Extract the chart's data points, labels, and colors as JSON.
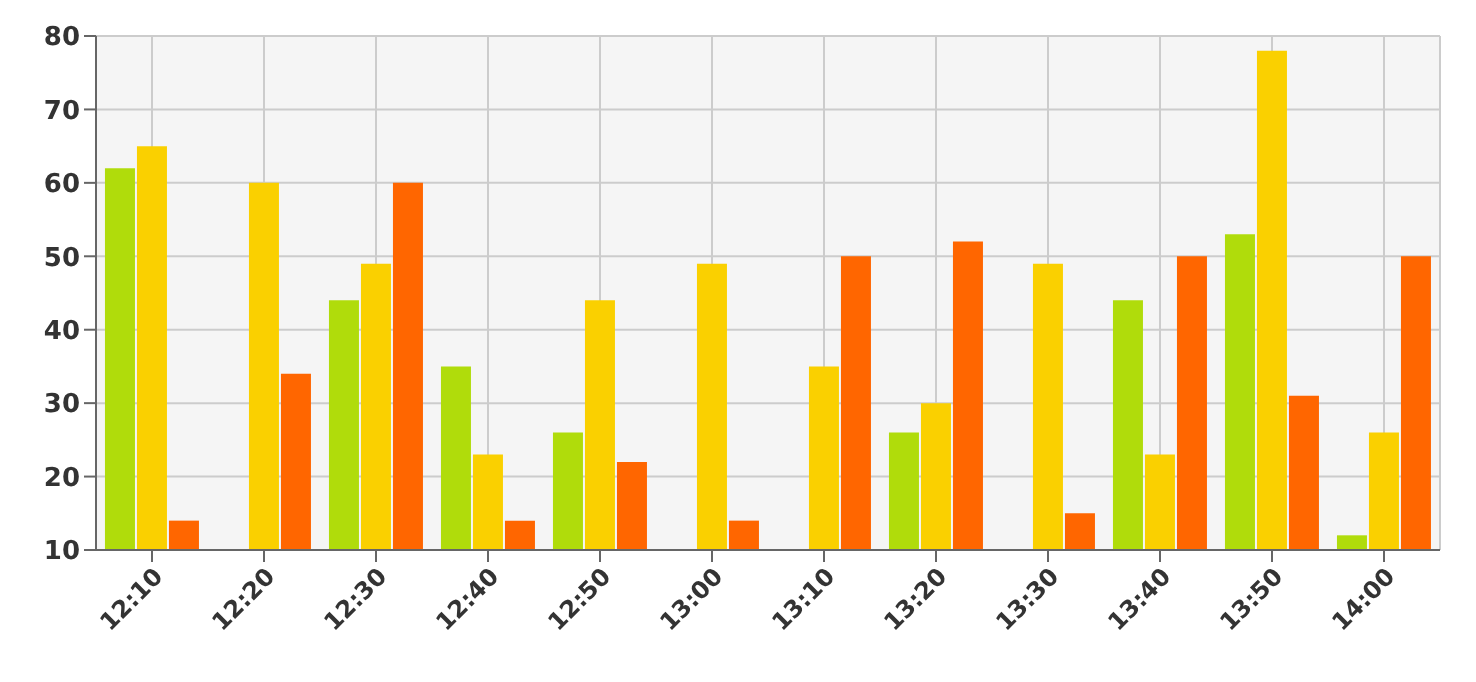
{
  "chart_data": {
    "type": "bar",
    "categories": [
      "12:10",
      "12:20",
      "12:30",
      "12:40",
      "12:50",
      "13:00",
      "13:10",
      "13:20",
      "13:30",
      "13:40",
      "13:50",
      "14:00"
    ],
    "series": [
      {
        "color": "#b0dc0b",
        "values": [
          62,
          null,
          44,
          35,
          26,
          null,
          null,
          26,
          null,
          44,
          53,
          12
        ]
      },
      {
        "color": "#fad000",
        "values": [
          65,
          60,
          49,
          23,
          44,
          49,
          35,
          30,
          49,
          23,
          78,
          26
        ]
      },
      {
        "color": "#ff6600",
        "values": [
          14,
          34,
          60,
          14,
          22,
          14,
          50,
          52,
          15,
          50,
          31,
          50
        ]
      }
    ],
    "ylim": [
      10,
      80
    ],
    "yticks": [
      10,
      20,
      30,
      40,
      50,
      60,
      70,
      80
    ],
    "grid": true
  }
}
